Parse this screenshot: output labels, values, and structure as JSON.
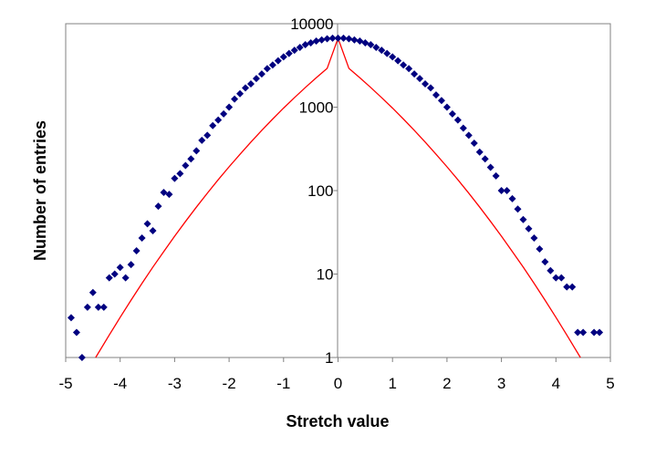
{
  "chart_data": {
    "type": "scatter",
    "title": "",
    "xlabel": "Stretch value",
    "ylabel": "Number of entries",
    "xlim": [
      -5,
      5
    ],
    "ylim": [
      1,
      10000
    ],
    "y_scale": "log",
    "x_ticks": [
      "-5",
      "-4",
      "-3",
      "-2",
      "-1",
      "0",
      "1",
      "2",
      "3",
      "4",
      "5"
    ],
    "y_ticks": [
      "1",
      "10",
      "100",
      "1000",
      "10000"
    ],
    "grid": false,
    "legend": "none",
    "colors": {
      "points": "#000080",
      "fit": "#ff0000"
    },
    "points": [
      [
        -4.9,
        3
      ],
      [
        -4.8,
        2
      ],
      [
        -4.7,
        1
      ],
      [
        -4.6,
        4
      ],
      [
        -4.5,
        6
      ],
      [
        -4.4,
        4
      ],
      [
        -4.3,
        4
      ],
      [
        -4.2,
        9
      ],
      [
        -4.1,
        10
      ],
      [
        -4.0,
        12
      ],
      [
        -3.9,
        9
      ],
      [
        -3.8,
        13
      ],
      [
        -3.7,
        19
      ],
      [
        -3.6,
        27
      ],
      [
        -3.5,
        40
      ],
      [
        -3.4,
        33
      ],
      [
        -3.3,
        65
      ],
      [
        -3.2,
        95
      ],
      [
        -3.1,
        90
      ],
      [
        -3.0,
        140
      ],
      [
        -2.9,
        160
      ],
      [
        -2.8,
        200
      ],
      [
        -2.7,
        240
      ],
      [
        -2.6,
        300
      ],
      [
        -2.5,
        400
      ],
      [
        -2.4,
        460
      ],
      [
        -2.3,
        600
      ],
      [
        -2.2,
        700
      ],
      [
        -2.1,
        830
      ],
      [
        -2.0,
        1000
      ],
      [
        -1.9,
        1250
      ],
      [
        -1.8,
        1450
      ],
      [
        -1.7,
        1700
      ],
      [
        -1.6,
        1900
      ],
      [
        -1.5,
        2200
      ],
      [
        -1.4,
        2500
      ],
      [
        -1.3,
        2900
      ],
      [
        -1.2,
        3200
      ],
      [
        -1.1,
        3600
      ],
      [
        -1.0,
        4000
      ],
      [
        -0.9,
        4400
      ],
      [
        -0.8,
        4800
      ],
      [
        -0.7,
        5200
      ],
      [
        -0.6,
        5600
      ],
      [
        -0.5,
        5900
      ],
      [
        -0.4,
        6200
      ],
      [
        -0.3,
        6400
      ],
      [
        -0.2,
        6600
      ],
      [
        -0.1,
        6700
      ],
      [
        0.0,
        6700
      ],
      [
        0.1,
        6700
      ],
      [
        0.2,
        6600
      ],
      [
        0.3,
        6400
      ],
      [
        0.4,
        6200
      ],
      [
        0.5,
        5900
      ],
      [
        0.6,
        5600
      ],
      [
        0.7,
        5200
      ],
      [
        0.8,
        4800
      ],
      [
        0.9,
        4400
      ],
      [
        1.0,
        4000
      ],
      [
        1.1,
        3600
      ],
      [
        1.2,
        3200
      ],
      [
        1.3,
        2900
      ],
      [
        1.4,
        2500
      ],
      [
        1.5,
        2200
      ],
      [
        1.6,
        1900
      ],
      [
        1.7,
        1700
      ],
      [
        1.8,
        1400
      ],
      [
        1.9,
        1200
      ],
      [
        2.0,
        1000
      ],
      [
        2.1,
        830
      ],
      [
        2.2,
        700
      ],
      [
        2.3,
        560
      ],
      [
        2.4,
        460
      ],
      [
        2.5,
        370
      ],
      [
        2.6,
        290
      ],
      [
        2.7,
        240
      ],
      [
        2.8,
        190
      ],
      [
        2.9,
        150
      ],
      [
        3.0,
        100
      ],
      [
        3.1,
        100
      ],
      [
        3.2,
        80
      ],
      [
        3.3,
        60
      ],
      [
        3.4,
        45
      ],
      [
        3.5,
        35
      ],
      [
        3.6,
        27
      ],
      [
        3.7,
        20
      ],
      [
        3.8,
        14
      ],
      [
        3.9,
        11
      ],
      [
        4.0,
        9
      ],
      [
        4.1,
        9
      ],
      [
        4.2,
        7
      ],
      [
        4.3,
        7
      ],
      [
        4.4,
        2
      ],
      [
        4.5,
        2
      ],
      [
        4.7,
        2
      ],
      [
        4.8,
        2
      ]
    ],
    "fit_curve": [
      [
        -4.45,
        1
      ],
      [
        -4.2,
        1.86
      ],
      [
        -4.0,
        3.03
      ],
      [
        -3.8,
        4.87
      ],
      [
        -3.6,
        7.72
      ],
      [
        -3.4,
        12.1
      ],
      [
        -3.2,
        18.6
      ],
      [
        -3.0,
        28.4
      ],
      [
        -2.8,
        42.7
      ],
      [
        -2.6,
        63.5
      ],
      [
        -2.4,
        93.1
      ],
      [
        -2.2,
        135
      ],
      [
        -2.0,
        193
      ],
      [
        -1.8,
        272
      ],
      [
        -1.6,
        381
      ],
      [
        -1.4,
        527
      ],
      [
        -1.2,
        721
      ],
      [
        -1.0,
        976
      ],
      [
        -0.8,
        1300
      ],
      [
        -0.6,
        1720
      ],
      [
        -0.4,
        2250
      ],
      [
        -0.2,
        2910
      ],
      [
        0.0,
        6700
      ]
    ]
  }
}
